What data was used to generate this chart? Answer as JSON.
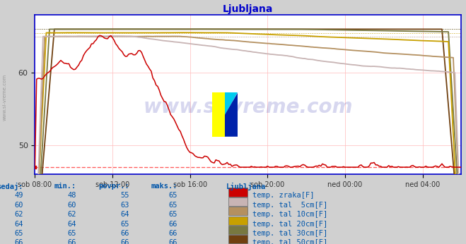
{
  "title": "Ljubljana",
  "title_color": "#0000cc",
  "bg_color": "#d0d0d0",
  "plot_bg_color": "#ffffff",
  "grid_color": "#ffbbbb",
  "axis_line_color": "#0000cc",
  "ylim": [
    46,
    68
  ],
  "yticks": [
    50,
    60
  ],
  "xtick_labels": [
    "sob 08:00",
    "sob 12:00",
    "sob 16:00",
    "sob 20:00",
    "ned 00:00",
    "ned 04:00"
  ],
  "series_colors": {
    "temp_zraka": "#cc0000",
    "tal_5cm": "#c8b4b4",
    "tal_10cm": "#b49060",
    "tal_20cm": "#c8a000",
    "tal_30cm": "#787840",
    "tal_50cm": "#704010"
  },
  "table_header_color": "#0055aa",
  "table_data_color": "#0055aa",
  "table_data": [
    {
      "sedaj": 49,
      "min": 48,
      "povpr": 55,
      "maks": 65,
      "label": "temp. zraka[F]",
      "color": "#cc0000"
    },
    {
      "sedaj": 60,
      "min": 60,
      "povpr": 63,
      "maks": 65,
      "label": "temp. tal  5cm[F]",
      "color": "#c8b4b4"
    },
    {
      "sedaj": 62,
      "min": 62,
      "povpr": 64,
      "maks": 65,
      "label": "temp. tal 10cm[F]",
      "color": "#b49060"
    },
    {
      "sedaj": 64,
      "min": 64,
      "povpr": 65,
      "maks": 66,
      "label": "temp. tal 20cm[F]",
      "color": "#c8a000"
    },
    {
      "sedaj": 65,
      "min": 65,
      "povpr": 66,
      "maks": 66,
      "label": "temp. tal 30cm[F]",
      "color": "#787840"
    },
    {
      "sedaj": 66,
      "min": 66,
      "povpr": 66,
      "maks": 66,
      "label": "temp. tal 50cm[F]",
      "color": "#704010"
    }
  ],
  "watermark_text": "www.si-vreme.com",
  "watermark_color": "#2222aa",
  "watermark_alpha": 0.18,
  "sidebar_text": "www.si-vreme.com",
  "sidebar_color": "#888888",
  "hline_color": "#ff4444",
  "hline_y": 47.0
}
